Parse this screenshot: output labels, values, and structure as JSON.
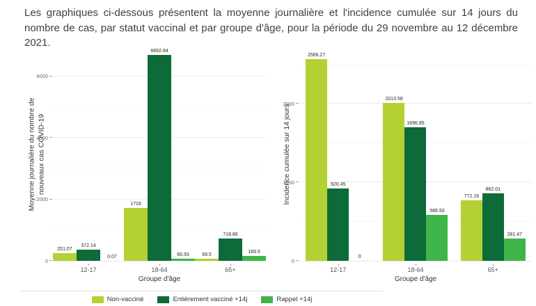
{
  "header": {
    "text": "Les graphiques ci-dessous présentent la moyenne journalière et l'incidence cumulée sur 14 jours du nombre de cas, par statut vaccinal et par groupe d'âge, pour la période du 29 novembre au 12 décembre 2021."
  },
  "colors": {
    "non_vaccine": "#b3d133",
    "entierement_vaccine": "#0c6b38",
    "rappel": "#3eb549"
  },
  "legend": {
    "items": [
      {
        "label": "Non-vacciné",
        "color": "#b3d133"
      },
      {
        "label": "Entièrement vacciné +14j",
        "color": "#0c6b38"
      },
      {
        "label": "Rappel +14j",
        "color": "#3eb549"
      }
    ]
  },
  "chart_data": [
    {
      "id": "moyenne-journaliere",
      "type": "bar",
      "title": "",
      "ylabel": "Moyenne journalière du nombre de\nnouveaux cas COVID-19",
      "xlabel": "Groupe d'âge",
      "categories": [
        "12-17",
        "18-64",
        "65+"
      ],
      "series": [
        {
          "name": "Non-vacciné",
          "color": "#b3d133",
          "values": [
            251.07,
            1718,
            69.5
          ],
          "labels": [
            "251.07",
            "1718",
            "69.5"
          ]
        },
        {
          "name": "Entièrement vacciné +14j",
          "color": "#0c6b38",
          "values": [
            372.14,
            6692.84,
            718.86
          ],
          "labels": [
            "372.14",
            "6692.84",
            "718.86"
          ]
        },
        {
          "name": "Rappel +14j",
          "color": "#3eb549",
          "values": [
            0.07,
            66.93,
            169.5
          ],
          "labels": [
            "0.07",
            "66.93",
            "169.5"
          ]
        }
      ],
      "ylim": [
        0,
        6900
      ],
      "yticks": [
        0,
        2000,
        4000,
        6000
      ],
      "grid": true,
      "legend_position": "bottom"
    },
    {
      "id": "incidence-cumulee",
      "type": "bar",
      "title": "",
      "ylabel": "Incidence cumulée sur 14 jours",
      "xlabel": "Groupe d'âge",
      "categories": [
        "12-17",
        "18-64",
        "65+"
      ],
      "series": [
        {
          "name": "Non-vacciné",
          "color": "#b3d133",
          "values": [
            2566.27,
            2013.58,
            772.19
          ],
          "labels": [
            "2566.27",
            "2013.58",
            "772.19"
          ]
        },
        {
          "name": "Entièrement vacciné +14j",
          "color": "#0c6b38",
          "values": [
            920.45,
            1696.85,
            862.01
          ],
          "labels": [
            "920.45",
            "1696.85",
            "862.01"
          ]
        },
        {
          "name": "Rappel +14j",
          "color": "#3eb549",
          "values": [
            0,
            586.93,
            281.47
          ],
          "labels": [
            "0",
            "586.93",
            "281.47"
          ]
        }
      ],
      "ylim": [
        0,
        2700
      ],
      "yticks": [
        0,
        1000,
        2000
      ],
      "grid": true,
      "legend_position": "bottom"
    }
  ]
}
